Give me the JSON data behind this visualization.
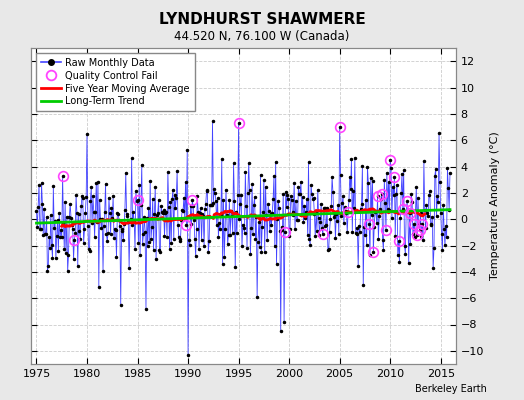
{
  "title": "LYNDHURST SHAWMERE",
  "subtitle": "44.520 N, 76.100 W (Canada)",
  "ylabel": "Temperature Anomaly (°C)",
  "credit": "Berkeley Earth",
  "ylim": [
    -11,
    13
  ],
  "xlim": [
    1974.5,
    2016.5
  ],
  "yticks": [
    -10,
    -8,
    -6,
    -4,
    -2,
    0,
    2,
    4,
    6,
    8,
    10,
    12
  ],
  "xticks": [
    1975,
    1980,
    1985,
    1990,
    1995,
    2000,
    2005,
    2010,
    2015
  ],
  "fig_bg": "#e8e8e8",
  "plot_bg": "#ffffff",
  "raw_color": "#4444ff",
  "dot_color": "#000000",
  "qc_color": "#ff44ff",
  "ma_color": "#ff0000",
  "trend_color": "#00cc00",
  "grid_color": "#cccccc",
  "seed": 42,
  "n_months": 492,
  "start_year": 1975.0,
  "trend_slope": 0.025,
  "trend_intercept": -0.3,
  "ma_window": 60
}
